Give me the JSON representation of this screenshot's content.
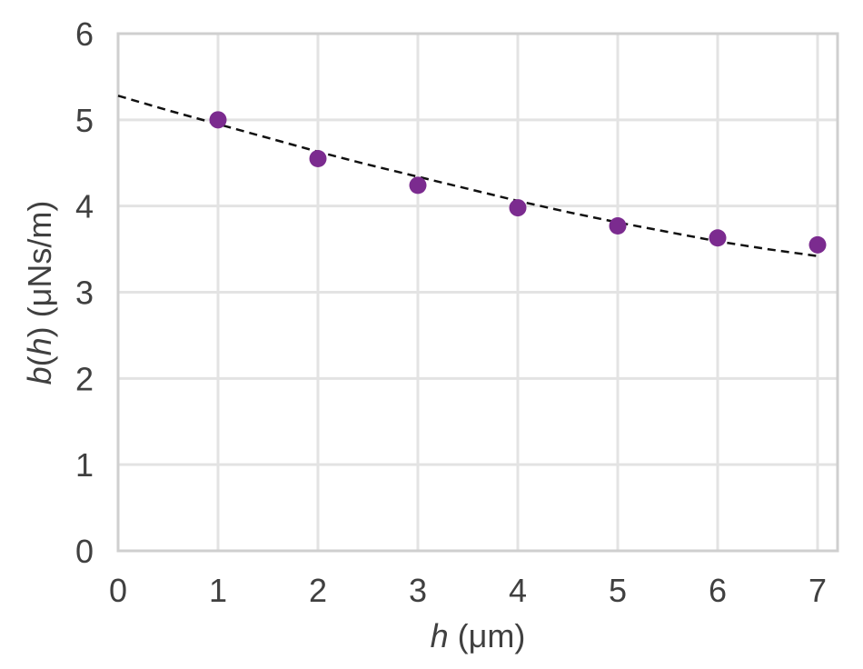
{
  "chart_data": {
    "type": "scatter",
    "x_ticks": [
      "0",
      "1",
      "2",
      "3",
      "4",
      "5",
      "6",
      "7"
    ],
    "y_ticks": [
      "0",
      "1",
      "2",
      "3",
      "4",
      "5",
      "6"
    ],
    "xlim": [
      0,
      7.2
    ],
    "ylim": [
      0,
      6
    ],
    "xlabel": {
      "italic": "h",
      "rest": " (μm)"
    },
    "ylabel": {
      "italic1": "b",
      "paren1": "(",
      "italic2": "h",
      "rest": ") (μNs/m)"
    },
    "grid": true,
    "series": [
      {
        "kind": "points",
        "color": "#7b2b8f",
        "x": [
          1,
          2,
          3,
          4,
          5,
          6,
          7
        ],
        "y": [
          5.0,
          4.55,
          4.24,
          3.98,
          3.77,
          3.63,
          3.55
        ]
      },
      {
        "kind": "fit-line",
        "color": "#111111",
        "style": "dashed",
        "x": [
          0,
          0.5,
          1,
          1.5,
          2,
          2.5,
          3,
          3.5,
          4,
          4.5,
          5,
          5.5,
          6,
          6.5,
          7
        ],
        "y": [
          5.28,
          5.11,
          4.95,
          4.79,
          4.63,
          4.48,
          4.34,
          4.2,
          4.06,
          3.93,
          3.81,
          3.7,
          3.59,
          3.5,
          3.42
        ]
      }
    ]
  }
}
